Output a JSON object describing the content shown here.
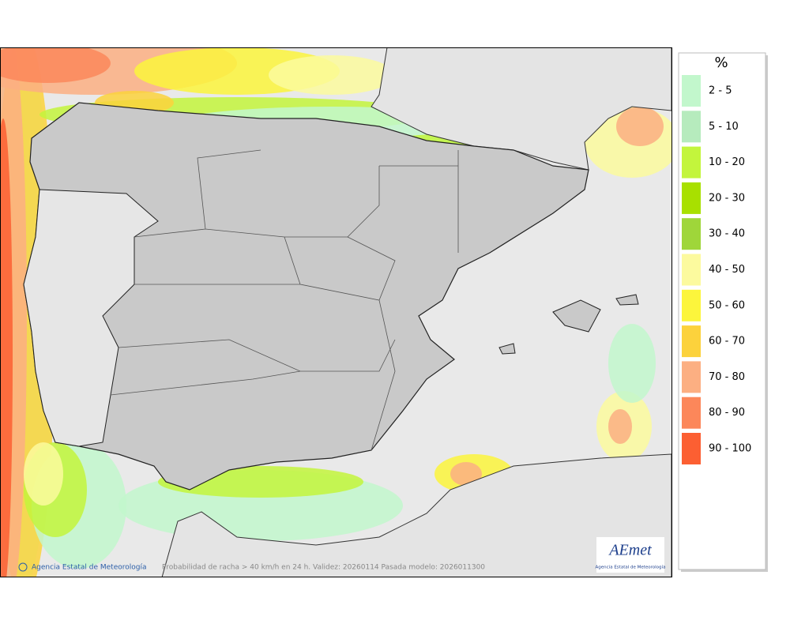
{
  "legend": {
    "title": "%",
    "items": [
      {
        "label": "2 - 5",
        "color": "#c2f7cc"
      },
      {
        "label": "5 - 10",
        "color": "#b6ebbd"
      },
      {
        "label": "10 - 20",
        "color": "#c3f53c"
      },
      {
        "label": "20 - 30",
        "color": "#a8e000"
      },
      {
        "label": "30 - 40",
        "color": "#9fd63a"
      },
      {
        "label": "40 - 50",
        "color": "#fcfa9e"
      },
      {
        "label": "50 - 60",
        "color": "#fcf53c"
      },
      {
        "label": "60 - 70",
        "color": "#fcd23c"
      },
      {
        "label": "70 - 80",
        "color": "#fcaf82"
      },
      {
        "label": "80 - 90",
        "color": "#fc875a"
      },
      {
        "label": "90 - 100",
        "color": "#fc5f32"
      }
    ]
  },
  "footer": {
    "credit": "Agencia Estatal de Meteorología",
    "caption": "Probabilidad de racha > 40 km/h en 24 h. Validez: 20260114 Pasada modelo: 2026011300"
  },
  "logo": {
    "name": "AEmet",
    "subtitle": "Agencia Estatal de Meteorología"
  }
}
